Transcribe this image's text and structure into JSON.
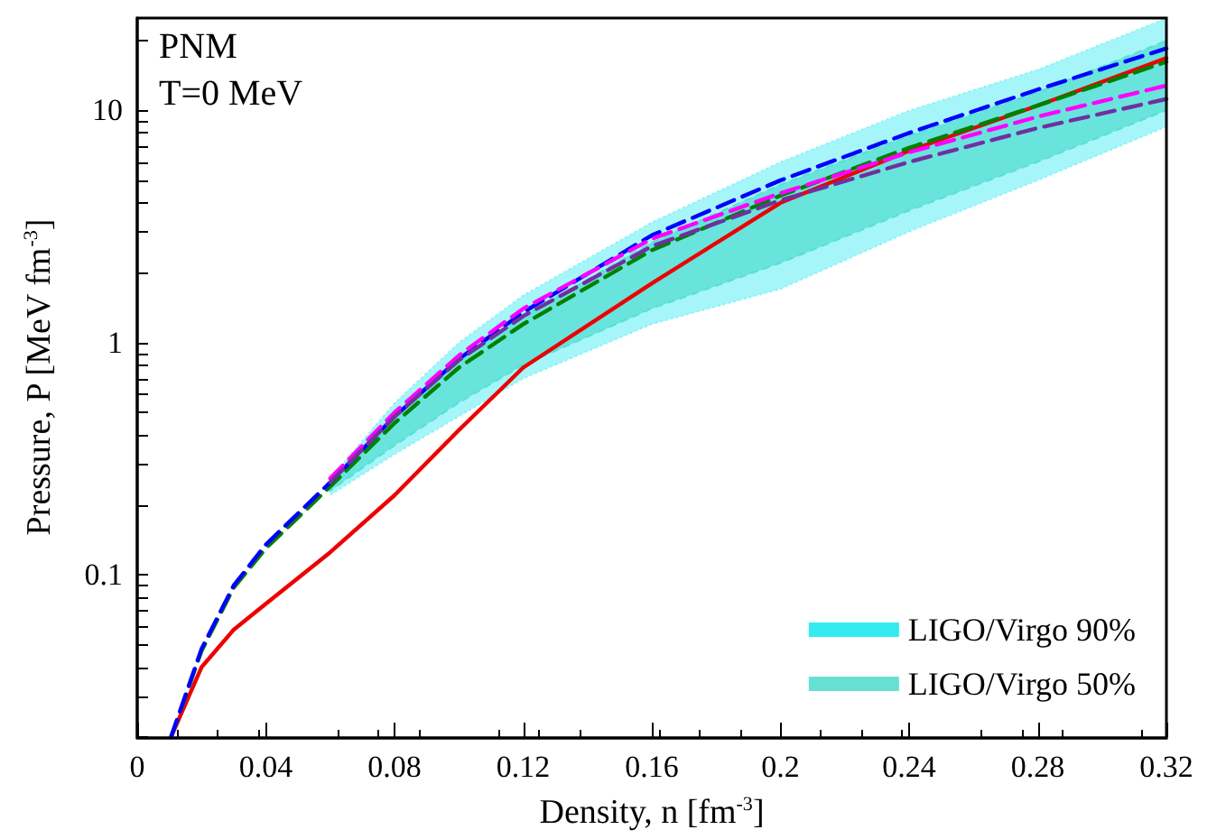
{
  "chart_data": {
    "type": "line",
    "xlabel": "Density, n [fm$^{-3}$]",
    "ylabel": "Pressure, P [MeV fm$^{-3}$]",
    "annotations": [
      "PNM",
      "T=0 MeV"
    ],
    "log": "y",
    "grid": false,
    "legend": "bottom right",
    "marker": "none",
    "xlim": [
      0,
      0.32
    ],
    "xticks": [
      0,
      0.04,
      0.08,
      0.12,
      0.16,
      0.2,
      0.24,
      0.28,
      0.32
    ],
    "ylim": [
      0.02,
      25
    ],
    "yticks": [
      {
        "value": 0.02,
        "label": null
      },
      {
        "value": 0.03,
        "label": null
      },
      {
        "value": 0.04,
        "label": null
      },
      {
        "value": 0.05,
        "label": null
      },
      {
        "value": 0.06,
        "label": null
      },
      {
        "value": 0.07,
        "label": null
      },
      {
        "value": 0.08,
        "label": null
      },
      {
        "value": 0.09,
        "label": null
      },
      0.1,
      {
        "value": 0.2,
        "label": null
      },
      {
        "value": 0.3,
        "label": null
      },
      {
        "value": 0.4,
        "label": null
      },
      {
        "value": 0.5,
        "label": null
      },
      {
        "value": 0.6,
        "label": null
      },
      {
        "value": 0.7,
        "label": null
      },
      {
        "value": 0.8,
        "label": null
      },
      {
        "value": 0.9,
        "label": null
      },
      1,
      {
        "value": 2,
        "label": null
      },
      {
        "value": 3,
        "label": null
      },
      {
        "value": 4,
        "label": null
      },
      {
        "value": 5,
        "label": null
      },
      {
        "value": 6,
        "label": null
      },
      {
        "value": 7,
        "label": null
      },
      {
        "value": 8,
        "label": null
      },
      {
        "value": 9,
        "label": null
      },
      10,
      {
        "value": 20,
        "label": null
      }
    ],
    "x": [
      0.0105,
      0.02,
      0.03,
      0.04,
      0.06,
      0.08,
      0.1,
      0.12,
      0.16,
      0.2,
      0.24,
      0.28,
      0.32
    ],
    "series": [
      {
        "name": "LIGO/Virgo 90%",
        "type": "area",
        "color": "#00e5ee",
        "line_style": "dotted",
        "x": [
          0.06,
          0.08,
          0.1,
          0.12,
          0.16,
          0.2,
          0.24,
          0.28,
          0.32
        ],
        "values": [
          null,
          null,
          null,
          null,
          null,
          null,
          null,
          null,
          null
        ],
        "lower": [
          0.22,
          0.33,
          0.48,
          0.7,
          1.2,
          1.7,
          3.0,
          5.0,
          8.5
        ],
        "upper": [
          0.26,
          0.55,
          1.0,
          1.6,
          3.3,
          6.0,
          10,
          15,
          25
        ]
      },
      {
        "name": "LIGO/Virgo 50%",
        "type": "area",
        "color": "#40d8c8",
        "line_style": "dashed",
        "x": [
          0.06,
          0.08,
          0.1,
          0.12,
          0.16,
          0.2,
          0.24,
          0.28,
          0.32
        ],
        "values": [
          null,
          null,
          null,
          null,
          null,
          null,
          null,
          null,
          null
        ],
        "lower": [
          0.23,
          0.36,
          0.55,
          0.8,
          1.4,
          2.2,
          3.7,
          6.0,
          10
        ],
        "upper": [
          0.25,
          0.48,
          0.85,
          1.3,
          2.7,
          4.8,
          7.8,
          12,
          20
        ]
      },
      {
        "color": "#ee0000",
        "line_style": "solid",
        "values": [
          0.02,
          0.04,
          0.058,
          0.075,
          0.125,
          0.22,
          0.42,
          0.78,
          1.8,
          4.0,
          6.7,
          10.5,
          16.8
        ]
      },
      {
        "color": "#008000",
        "line_style": "dashed",
        "values": [
          0.02,
          0.047,
          0.088,
          0.13,
          0.24,
          0.45,
          0.78,
          1.2,
          2.5,
          4.3,
          6.9,
          10.5,
          16.2
        ]
      },
      {
        "color": "#0000ff",
        "line_style": "dashed",
        "values": [
          0.02,
          0.048,
          0.09,
          0.135,
          0.25,
          0.48,
          0.85,
          1.35,
          2.9,
          5.0,
          8.0,
          12.3,
          18.5
        ]
      },
      {
        "color": "#ff00ff",
        "line_style": "dashed",
        "values": [
          null,
          null,
          null,
          null,
          0.26,
          0.5,
          0.88,
          1.4,
          2.8,
          4.4,
          6.6,
          9.4,
          12.8
        ]
      },
      {
        "color": "#7030a0",
        "line_style": "dashed",
        "values": [
          null,
          null,
          null,
          null,
          0.25,
          0.48,
          0.84,
          1.3,
          2.6,
          4.1,
          6.0,
          8.4,
          11.2
        ]
      }
    ]
  }
}
